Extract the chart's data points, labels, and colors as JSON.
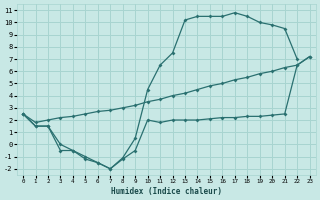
{
  "xlabel": "Humidex (Indice chaleur)",
  "xlim": [
    -0.5,
    23.5
  ],
  "ylim": [
    -2.5,
    11.5
  ],
  "xticks": [
    0,
    1,
    2,
    3,
    4,
    5,
    6,
    7,
    8,
    9,
    10,
    11,
    12,
    13,
    14,
    15,
    16,
    17,
    18,
    19,
    20,
    21,
    22,
    23
  ],
  "yticks": [
    -2,
    -1,
    0,
    1,
    2,
    3,
    4,
    5,
    6,
    7,
    8,
    9,
    10,
    11
  ],
  "bg_color": "#c8e8e5",
  "grid_color": "#a8d4d0",
  "line_color": "#2a7070",
  "curve1_x": [
    0,
    1,
    2,
    3,
    4,
    5,
    6,
    7,
    8,
    9,
    10,
    11,
    12,
    13,
    14,
    15,
    16,
    17,
    18,
    19,
    20,
    21,
    22,
    23
  ],
  "curve1_y": [
    2.5,
    1.5,
    1.5,
    0.0,
    -0.5,
    -1.0,
    -1.5,
    -2.0,
    -1.2,
    -0.5,
    2.0,
    1.8,
    2.0,
    2.0,
    2.0,
    2.1,
    2.2,
    2.2,
    2.3,
    2.3,
    2.4,
    2.5,
    6.5,
    7.2
  ],
  "curve2_x": [
    0,
    1,
    2,
    3,
    4,
    5,
    6,
    7,
    8,
    9,
    10,
    11,
    12,
    13,
    14,
    15,
    16,
    17,
    18,
    19,
    20,
    21,
    22
  ],
  "curve2_y": [
    2.5,
    1.5,
    1.5,
    -0.5,
    -0.5,
    -1.2,
    -1.5,
    -2.0,
    -1.1,
    0.5,
    4.5,
    6.5,
    7.5,
    10.2,
    10.5,
    10.5,
    10.5,
    10.8,
    10.5,
    10.0,
    9.8,
    9.5,
    7.0
  ],
  "curve3_x": [
    0,
    1,
    2,
    3,
    4,
    5,
    6,
    7,
    8,
    9,
    10,
    11,
    12,
    13,
    14,
    15,
    16,
    17,
    18,
    19,
    20,
    21,
    22,
    23
  ],
  "curve3_y": [
    2.5,
    1.8,
    2.0,
    2.2,
    2.3,
    2.5,
    2.7,
    2.8,
    3.0,
    3.2,
    3.5,
    3.7,
    4.0,
    4.2,
    4.5,
    4.8,
    5.0,
    5.3,
    5.5,
    5.8,
    6.0,
    6.3,
    6.5,
    7.2
  ]
}
